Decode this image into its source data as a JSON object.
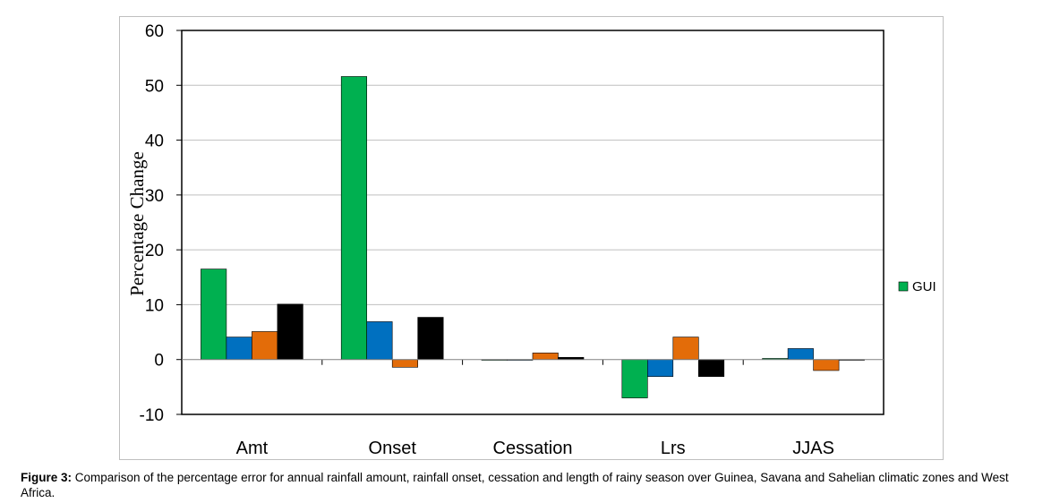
{
  "chart_data": {
    "type": "bar",
    "title": "",
    "ylabel": "Percentage Change",
    "xlabel": "",
    "ylim": [
      -10,
      60
    ],
    "yticks": [
      -10,
      0,
      10,
      20,
      30,
      40,
      50,
      60
    ],
    "grid": true,
    "legend_position": "right",
    "categories": [
      "Amt",
      "Onset",
      "Cessation",
      "Lrs",
      "JJAS"
    ],
    "series": [
      {
        "name": "GUI",
        "color": "#00b050",
        "values": [
          16.5,
          51.6,
          0,
          -7.0,
          0.2
        ]
      },
      {
        "color": "#0070c0",
        "values": [
          4.1,
          6.9,
          0,
          -3.1,
          2.0
        ]
      },
      {
        "color": "#e36c09",
        "values": [
          5.1,
          -1.4,
          1.2,
          4.1,
          -2.0
        ]
      },
      {
        "color": "#000000",
        "values": [
          10.1,
          7.7,
          0.4,
          -3.1,
          0
        ]
      }
    ]
  },
  "caption": {
    "label": "Figure 3:",
    "text": " Comparison of the percentage error for annual rainfall amount, rainfall onset, cessation and length of rainy season over Guinea, Savana and Sahelian climatic zones and West Africa."
  }
}
